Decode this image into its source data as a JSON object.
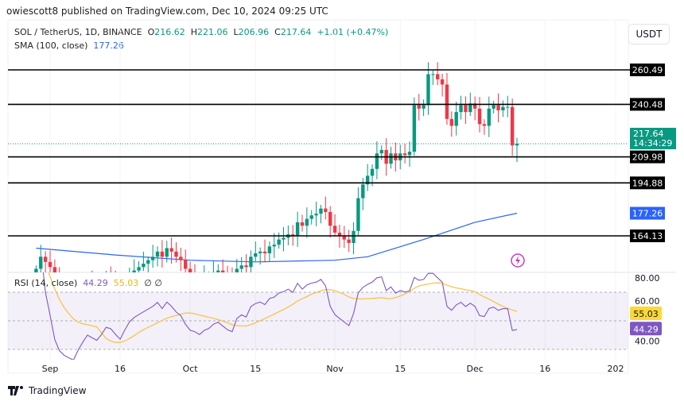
{
  "header": {
    "published": "owiescott8 published on TradingView.com, Dec 10, 2024 09:25 UTC",
    "symbol": "SOL / TetherUS, 1D, BINANCE",
    "open_label": "O",
    "open": "216.62",
    "high_label": "H",
    "high": "221.06",
    "low_label": "L",
    "low": "206.96",
    "close_label": "C",
    "close": "217.64",
    "change": "+1.01 (+0.47%)",
    "sma_label": "SMA (100, close)",
    "sma_value": "177.26",
    "rsi_label": "RSI (14, close)",
    "rsi_value": "44.29",
    "rsi_ma_value": "55.03",
    "rsi_extra": "∅ ∅"
  },
  "currency_button": "USDT",
  "footer": {
    "brand": "TradingView"
  },
  "colors": {
    "up": "#089981",
    "down": "#f23645",
    "sma": "#2962ff",
    "rsi": "#7e57c2",
    "rsi_ma": "#f7c548",
    "levels": "#000000"
  },
  "chart_data": {
    "type": "candlestick",
    "start_date": "2024-08-29",
    "closes": [
      145,
      152,
      149,
      146,
      140,
      135,
      132,
      130,
      128,
      131,
      134,
      137,
      135,
      133,
      136,
      140,
      139,
      135,
      131,
      136,
      141,
      144,
      146,
      148,
      150,
      152,
      155,
      152,
      157,
      155,
      152,
      150,
      145,
      141,
      140,
      138,
      140,
      141,
      143,
      144,
      142,
      140,
      139,
      145,
      147,
      146,
      152,
      154,
      155,
      154,
      158,
      159,
      162,
      163,
      165,
      164,
      172,
      170,
      174,
      176,
      177,
      180,
      178,
      170,
      166,
      164,
      162,
      160,
      167,
      186,
      194,
      199,
      203,
      212,
      214,
      206,
      212,
      208,
      212,
      211,
      213,
      240,
      238,
      240,
      258,
      258,
      255,
      252,
      232,
      228,
      236,
      240,
      236,
      241,
      238,
      229,
      228,
      238,
      240,
      237,
      239,
      239,
      216.63,
      217.64
    ],
    "last_candle": {
      "o": 216.62,
      "h": 221.06,
      "l": 206.96,
      "c": 217.64
    },
    "sma100": [
      [
        "2024-08-29",
        157
      ],
      [
        "2024-09-15",
        153
      ],
      [
        "2024-10-01",
        150
      ],
      [
        "2024-10-15",
        149
      ],
      [
        "2024-11-01",
        150
      ],
      [
        "2024-11-08",
        152
      ],
      [
        "2024-11-20",
        162
      ],
      [
        "2024-12-01",
        172
      ],
      [
        "2024-12-10",
        177.26
      ]
    ],
    "price_levels": [
      {
        "value": 260.49,
        "label": "260.49"
      },
      {
        "value": 240.48,
        "label": "240.48"
      },
      {
        "value": 209.98,
        "label": "209.98"
      },
      {
        "value": 194.88,
        "label": "194.88"
      },
      {
        "value": 164.13,
        "label": "164.13"
      }
    ],
    "current_price": {
      "label": "217.64",
      "countdown": "14:34:29",
      "value": 217.64
    },
    "sma_tag": {
      "label": "177.26",
      "value": 177.26
    },
    "rsi": {
      "period": 14,
      "ma_period": 14,
      "ticks": [
        "80.00",
        "60.00",
        "40.00"
      ],
      "bands": [
        70,
        50,
        30
      ],
      "last": "44.29",
      "ma_last": "55.03",
      "ylim": [
        20,
        85
      ]
    },
    "x_ticks": [
      "Sep",
      "16",
      "Oct",
      "15",
      "Nov",
      "15",
      "Dec",
      "16",
      "202"
    ],
    "x_tick_dates": [
      "2024-09-01",
      "2024-09-16",
      "2024-10-01",
      "2024-10-15",
      "2024-11-01",
      "2024-11-15",
      "2024-12-01",
      "2024-12-16",
      "2025-01-01"
    ]
  }
}
